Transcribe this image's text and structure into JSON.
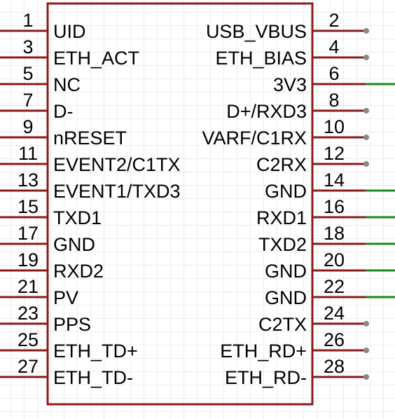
{
  "component": {
    "body_color": "#8b1a1a",
    "pin_color": "#8b1a1a",
    "connected_wire_color": "#1a8a1a",
    "endpoint_color": "#888888",
    "left_pins": [
      {
        "number": "1",
        "name": "UID"
      },
      {
        "number": "3",
        "name": "ETH_ACT"
      },
      {
        "number": "5",
        "name": "NC"
      },
      {
        "number": "7",
        "name": "D-"
      },
      {
        "number": "9",
        "name": "nRESET"
      },
      {
        "number": "11",
        "name": "EVENT2/C1TX"
      },
      {
        "number": "13",
        "name": "EVENT1/TXD3"
      },
      {
        "number": "15",
        "name": "TXD1"
      },
      {
        "number": "17",
        "name": "GND"
      },
      {
        "number": "19",
        "name": "RXD2"
      },
      {
        "number": "21",
        "name": "PV"
      },
      {
        "number": "23",
        "name": "PPS"
      },
      {
        "number": "25",
        "name": "ETH_TD+"
      },
      {
        "number": "27",
        "name": "ETH_TD-"
      }
    ],
    "right_pins": [
      {
        "number": "2",
        "name": "USB_VBUS",
        "connected": false
      },
      {
        "number": "4",
        "name": "ETH_BIAS",
        "connected": false
      },
      {
        "number": "6",
        "name": "3V3",
        "connected": true
      },
      {
        "number": "8",
        "name": "D+/RXD3",
        "connected": false
      },
      {
        "number": "10",
        "name": "VARF/C1RX",
        "connected": false
      },
      {
        "number": "12",
        "name": "C2RX",
        "connected": false
      },
      {
        "number": "14",
        "name": "GND",
        "connected": true
      },
      {
        "number": "16",
        "name": "RXD1",
        "connected": true
      },
      {
        "number": "18",
        "name": "TXD2",
        "connected": true
      },
      {
        "number": "20",
        "name": "GND",
        "connected": true
      },
      {
        "number": "22",
        "name": "GND",
        "connected": true
      },
      {
        "number": "24",
        "name": "C2TX",
        "connected": false
      },
      {
        "number": "26",
        "name": "ETH_RD+",
        "connected": false
      },
      {
        "number": "28",
        "name": "ETH_RD-",
        "connected": false
      }
    ]
  }
}
